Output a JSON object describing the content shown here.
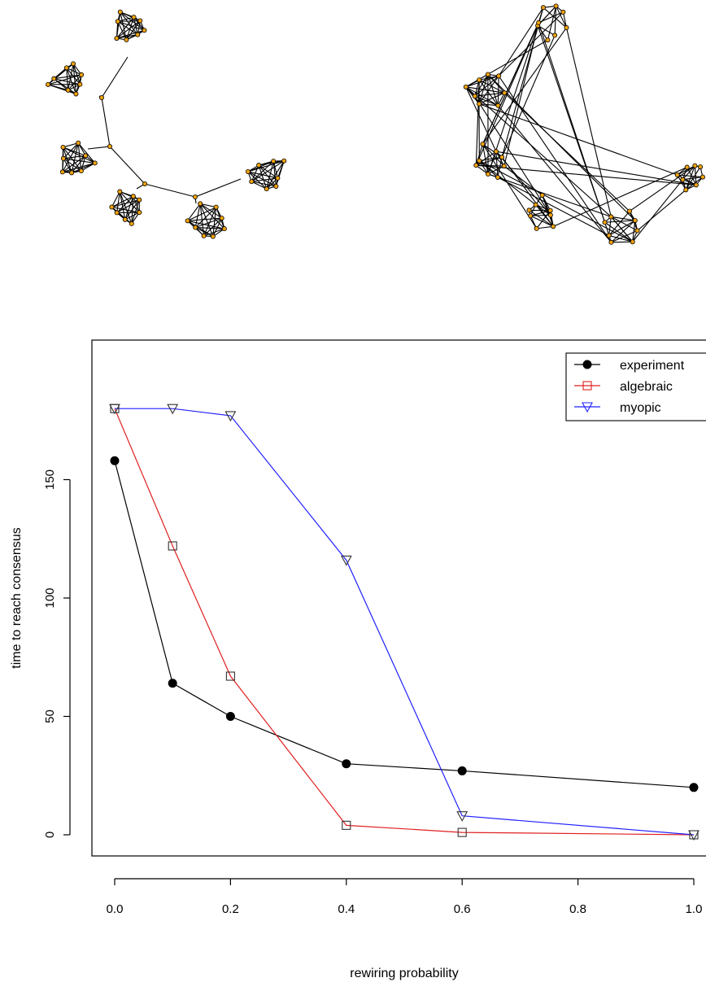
{
  "chart_data": {
    "type": "line",
    "xlabel": "rewiring probability",
    "ylabel": "time to reach consensus",
    "xlim": [
      0.0,
      1.0
    ],
    "ylim": [
      0,
      180
    ],
    "x_ticks": [
      "0.0",
      "0.2",
      "0.4",
      "0.6",
      "0.8",
      "1.0"
    ],
    "y_ticks": [
      "0",
      "50",
      "100",
      "150"
    ],
    "grid": false,
    "legend_position": "top-right",
    "series": [
      {
        "name": "experiment",
        "color": "#000000",
        "marker": "filled-circle",
        "x": [
          0.0,
          0.1,
          0.2,
          0.4,
          0.6,
          1.0
        ],
        "y": [
          158,
          64,
          50,
          30,
          27,
          20
        ]
      },
      {
        "name": "algebraic",
        "color": "#e02020",
        "marker": "open-square",
        "x": [
          0.0,
          0.1,
          0.2,
          0.4,
          0.6,
          1.0
        ],
        "y": [
          180,
          122,
          67,
          4,
          1,
          0
        ]
      },
      {
        "name": "myopic",
        "color": "#2020ff",
        "marker": "open-triangle-down",
        "x": [
          0.0,
          0.1,
          0.2,
          0.4,
          0.6,
          1.0
        ],
        "y": [
          180,
          180,
          177,
          116,
          8,
          0
        ]
      }
    ]
  }
}
